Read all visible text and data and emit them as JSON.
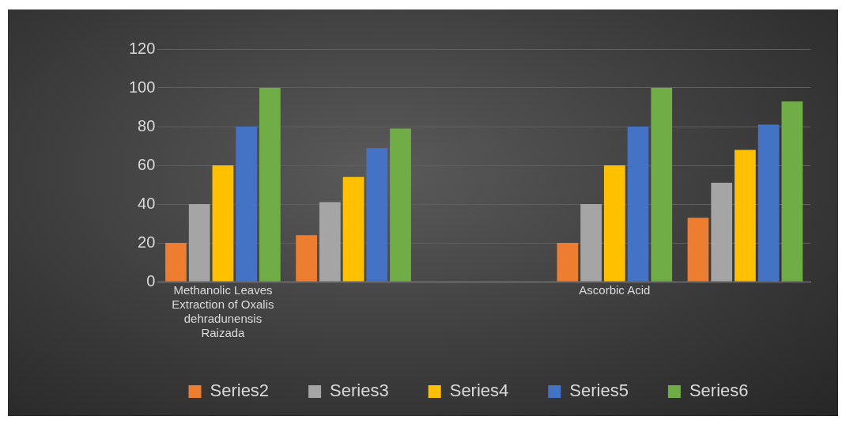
{
  "chart_data": {
    "type": "bar",
    "categories": [
      "Methanolic Leaves Extraction of Oxalis dehradunensis Raizada",
      null,
      null,
      "Ascorbic Acid",
      null
    ],
    "series": [
      {
        "name": "Series2",
        "color": "#ed7d31",
        "values": [
          20,
          24,
          null,
          20,
          33
        ]
      },
      {
        "name": "Series3",
        "color": "#a5a5a5",
        "values": [
          40,
          41,
          null,
          40,
          51
        ]
      },
      {
        "name": "Series4",
        "color": "#ffc000",
        "values": [
          60,
          54,
          null,
          60,
          68
        ]
      },
      {
        "name": "Series5",
        "color": "#4472c4",
        "values": [
          80,
          69,
          null,
          80,
          81
        ]
      },
      {
        "name": "Series6",
        "color": "#70ad47",
        "values": [
          100,
          79,
          null,
          100,
          93
        ]
      }
    ],
    "ylim": [
      0,
      120
    ],
    "yticks": [
      0,
      20,
      40,
      60,
      80,
      100,
      120
    ],
    "grid": "y",
    "legend": "bottom"
  }
}
